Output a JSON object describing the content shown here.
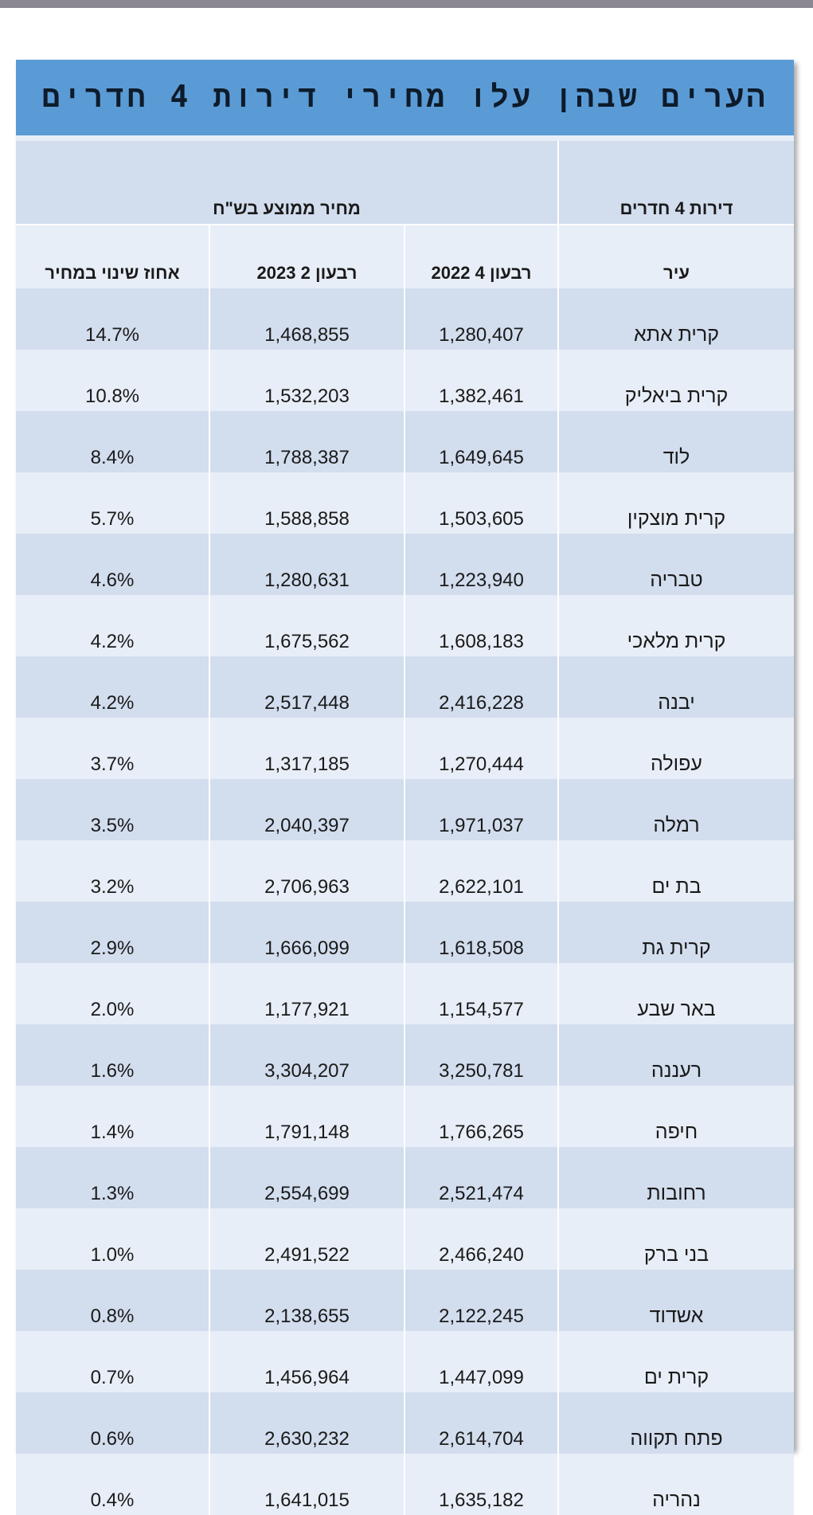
{
  "title": "הערים שבהן עלו מחירי דירות 4 חדרים",
  "header": {
    "group_label": "דירות 4 חדרים",
    "price_group_label": "מחיר ממוצע בש\"ח",
    "col_city": "עיר",
    "col_q4_2022": "רבעון 4 2022",
    "col_q2_2023": "רבעון 2 2023",
    "col_change": "אחוז שינוי במחיר"
  },
  "rows": [
    {
      "city": "קרית אתא",
      "q4_2022": "1,280,407",
      "q2_2023": "1,468,855",
      "change": "14.7%"
    },
    {
      "city": "קרית ביאליק",
      "q4_2022": "1,382,461",
      "q2_2023": "1,532,203",
      "change": "10.8%"
    },
    {
      "city": "לוד",
      "q4_2022": "1,649,645",
      "q2_2023": "1,788,387",
      "change": "8.4%"
    },
    {
      "city": "קרית מוצקין",
      "q4_2022": "1,503,605",
      "q2_2023": "1,588,858",
      "change": "5.7%"
    },
    {
      "city": "טבריה",
      "q4_2022": "1,223,940",
      "q2_2023": "1,280,631",
      "change": "4.6%"
    },
    {
      "city": "קרית מלאכי",
      "q4_2022": "1,608,183",
      "q2_2023": "1,675,562",
      "change": "4.2%"
    },
    {
      "city": "יבנה",
      "q4_2022": "2,416,228",
      "q2_2023": "2,517,448",
      "change": "4.2%"
    },
    {
      "city": "עפולה",
      "q4_2022": "1,270,444",
      "q2_2023": "1,317,185",
      "change": "3.7%"
    },
    {
      "city": "רמלה",
      "q4_2022": "1,971,037",
      "q2_2023": "2,040,397",
      "change": "3.5%"
    },
    {
      "city": "בת ים",
      "q4_2022": "2,622,101",
      "q2_2023": "2,706,963",
      "change": "3.2%"
    },
    {
      "city": "קרית גת",
      "q4_2022": "1,618,508",
      "q2_2023": "1,666,099",
      "change": "2.9%"
    },
    {
      "city": "באר שבע",
      "q4_2022": "1,154,577",
      "q2_2023": "1,177,921",
      "change": "2.0%"
    },
    {
      "city": "רעננה",
      "q4_2022": "3,250,781",
      "q2_2023": "3,304,207",
      "change": "1.6%"
    },
    {
      "city": "חיפה",
      "q4_2022": "1,766,265",
      "q2_2023": "1,791,148",
      "change": "1.4%"
    },
    {
      "city": "רחובות",
      "q4_2022": "2,521,474",
      "q2_2023": "2,554,699",
      "change": "1.3%"
    },
    {
      "city": "בני ברק",
      "q4_2022": "2,466,240",
      "q2_2023": "2,491,522",
      "change": "1.0%"
    },
    {
      "city": "אשדוד",
      "q4_2022": "2,122,245",
      "q2_2023": "2,138,655",
      "change": "0.8%"
    },
    {
      "city": "קרית ים",
      "q4_2022": "1,447,099",
      "q2_2023": "1,456,964",
      "change": "0.7%"
    },
    {
      "city": "פתח תקווה",
      "q4_2022": "2,614,704",
      "q2_2023": "2,630,232",
      "change": "0.6%"
    },
    {
      "city": "נהריה",
      "q4_2022": "1,635,182",
      "q2_2023": "1,641,015",
      "change": "0.4%"
    }
  ]
}
